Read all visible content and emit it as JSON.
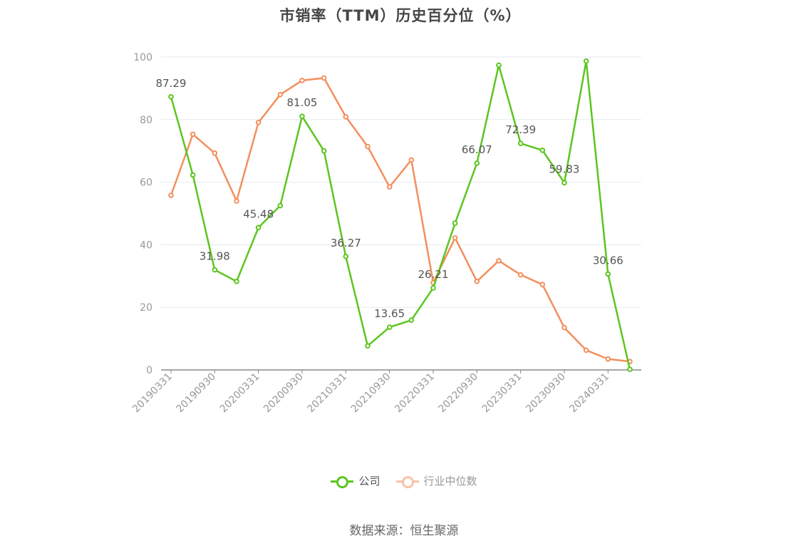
{
  "chart_data": {
    "type": "line",
    "title": "市销率（TTM）历史百分位（%）",
    "ylim": [
      0,
      100
    ],
    "yticks": [
      0,
      20,
      40,
      60,
      80,
      100
    ],
    "grid": true,
    "legend_position": "bottom-center",
    "x": [
      "20190331",
      "20190630",
      "20190930",
      "20191231",
      "20200331",
      "20200630",
      "20200930",
      "20201231",
      "20210331",
      "20210630",
      "20210930",
      "20211231",
      "20220331",
      "20220630",
      "20220930",
      "20221231",
      "20230331",
      "20230630",
      "20230930",
      "20231231",
      "20240331",
      "20240630"
    ],
    "xtick_labels": [
      "20190331",
      "20190930",
      "20200331",
      "20200930",
      "20210331",
      "20210930",
      "20220331",
      "20220930",
      "20230331",
      "20230930",
      "20240331"
    ],
    "series": [
      {
        "name": "公司",
        "color": "#5cc51f",
        "values": [
          87.29,
          62.3,
          31.98,
          28.3,
          45.48,
          52.5,
          81.05,
          70.0,
          36.27,
          7.7,
          13.65,
          15.9,
          26.21,
          46.9,
          66.07,
          97.4,
          72.39,
          70.2,
          59.83,
          98.7,
          30.66,
          0.2
        ],
        "labels": {
          "0": "87.29",
          "2": "31.98",
          "4": "45.48",
          "6": "81.05",
          "8": "36.27",
          "10": "13.65",
          "12": "26.21",
          "14": "66.07",
          "16": "72.39",
          "18": "59.83",
          "20": "30.66"
        }
      },
      {
        "name": "行业中位数",
        "color": "#f38f5e",
        "values": [
          55.8,
          75.3,
          69.3,
          54.0,
          79.1,
          88.0,
          92.5,
          93.3,
          80.9,
          71.4,
          58.5,
          67.1,
          27.9,
          42.2,
          28.3,
          34.9,
          30.4,
          27.3,
          13.5,
          6.3,
          3.5,
          2.7
        ]
      }
    ]
  },
  "source_text": "数据来源：恒生聚源"
}
